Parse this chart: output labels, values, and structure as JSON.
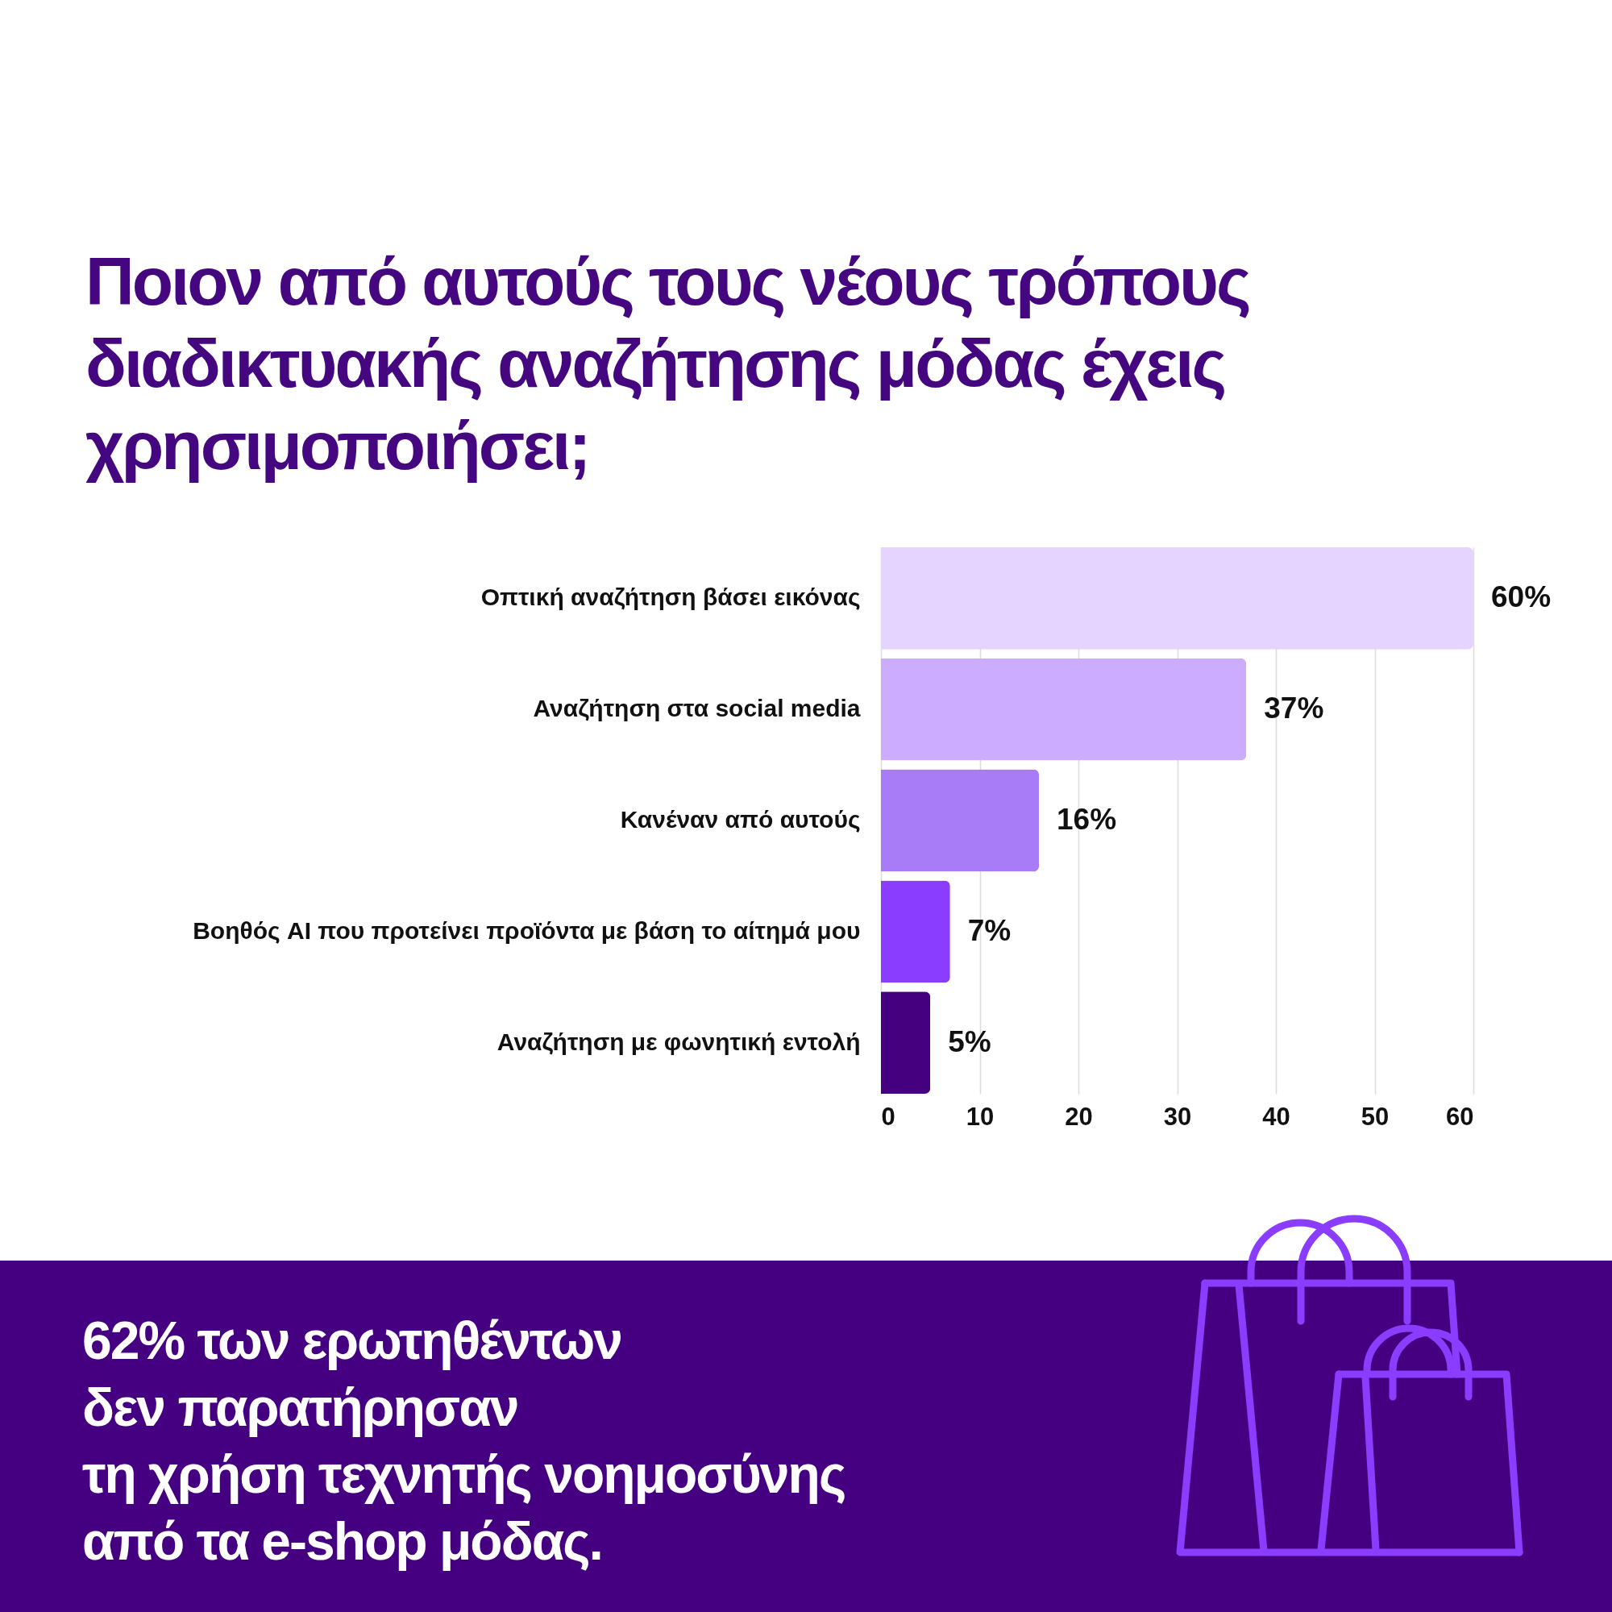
{
  "chart_data": {
    "type": "bar",
    "orientation": "horizontal",
    "title": "Ποιον από αυτούς τους νέους τρόπους διαδικτυακής αναζήτησης μόδας έχεις χρησιμοποιήσει;",
    "categories": [
      "Οπτική αναζήτηση βάσει εικόνας",
      "Αναζήτηση στα social media",
      "Κανέναν από αυτούς",
      "Βοηθός AI που προτείνει προϊόντα με βάση το αίτημά μου",
      "Αναζήτηση με φωνητική εντολή"
    ],
    "values": [
      60,
      37,
      16,
      7,
      5
    ],
    "colors": [
      "#e4d4ff",
      "#cbacff",
      "#a87cf6",
      "#8a3cff",
      "#44007f"
    ],
    "value_labels": [
      "60%",
      "37%",
      "16%",
      "7%",
      "5%"
    ],
    "xlim": [
      0,
      60
    ],
    "xticks": [
      0,
      10,
      20,
      30,
      40,
      50,
      60
    ],
    "grid": "x",
    "annotations": [
      "62% των ερωτηθέντων\nδεν παρατήρησαν\nτη χρήση τεχνητής νοημοσύνης\nαπό τα e-shop μόδας."
    ]
  }
}
